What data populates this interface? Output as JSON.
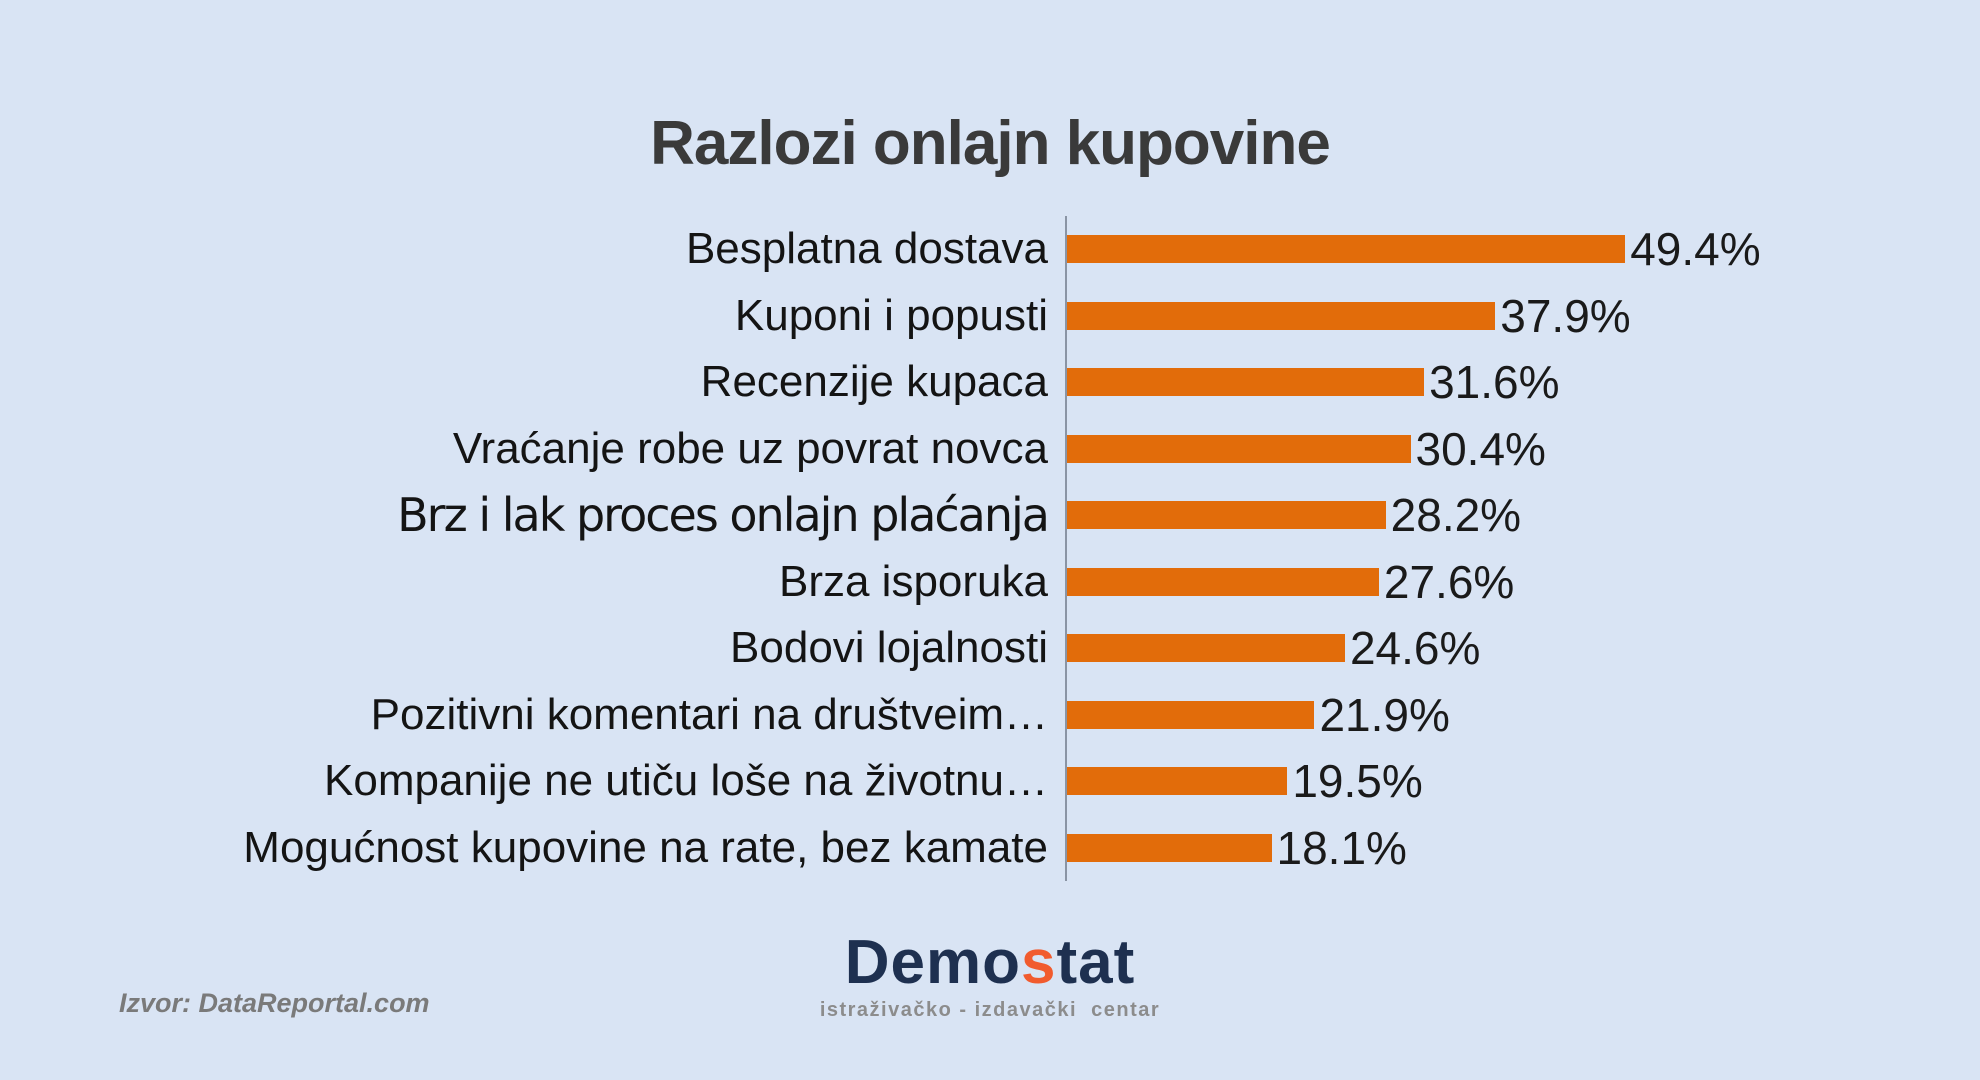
{
  "title": "Razlozi onlajn kupovine",
  "source_note": "Izvor: DataReportal.com",
  "logo": {
    "name_part1": "Demo",
    "name_accent": "s",
    "name_part2": "tat",
    "tagline": "istraživačko - izdavački  centar"
  },
  "colors": {
    "background": "#d9e4f4",
    "bar": "#e26c0a",
    "title_text": "#3a3a3a",
    "label_text": "#141414",
    "value_text": "#1a1a1a",
    "axis_line": "#8a94a4",
    "logo_navy": "#1e3050",
    "logo_orange": "#f15b2e",
    "tagline_gray": "#8c8c8c",
    "source_gray": "#7a7a7a"
  },
  "chart_data": {
    "type": "bar",
    "orientation": "horizontal",
    "title": "Razlozi onlajn kupovine",
    "xlabel": "",
    "ylabel": "",
    "xlim": [
      0,
      50
    ],
    "grid": false,
    "legend": false,
    "bar_color": "#e26c0a",
    "categories": [
      "Besplatna dostava",
      "Kuponi i popusti",
      "Recenzije kupaca",
      "Vraćanje robe uz povrat novca",
      "Brz i lak proces onlajn plaćanja",
      "Brza isporuka",
      "Bodovi lojalnosti",
      "Pozitivni komentari na društveim…",
      "Kompanije ne utiču loše na životnu…",
      "Mogućnost kupovine na rate, bez kamate"
    ],
    "values": [
      49.4,
      37.9,
      31.6,
      30.4,
      28.2,
      27.6,
      24.6,
      21.9,
      19.5,
      18.1
    ],
    "value_labels": [
      "49.4%",
      "37.9%",
      "31.6%",
      "30.4%",
      "28.2%",
      "27.6%",
      "24.6%",
      "21.9%",
      "19.5%",
      "18.1%"
    ]
  }
}
